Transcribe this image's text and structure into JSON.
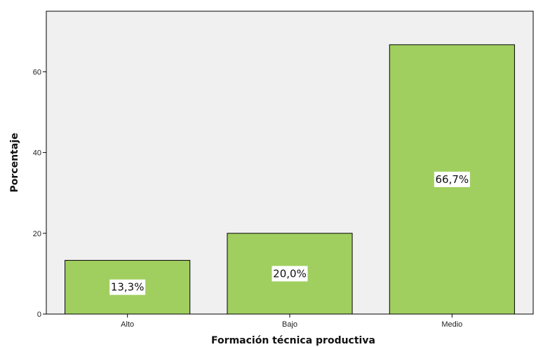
{
  "chart_data": {
    "type": "bar",
    "title": "",
    "xlabel": "Formación técnica productiva",
    "ylabel": "Porcentaje",
    "categories": [
      "Alto",
      "Bajo",
      "Medio"
    ],
    "values": [
      13.3,
      20.0,
      66.7
    ],
    "data_labels": [
      "13,3%",
      "20,0%",
      "66,7%"
    ],
    "ylim": [
      0,
      75
    ],
    "yticks": [
      0,
      20,
      40,
      60
    ],
    "ytick_labels": [
      "0",
      "20",
      "40",
      "60"
    ],
    "grid": false,
    "legend": "none",
    "bar_color": "#a0cf5f",
    "plot_background": "#f0f0f0"
  }
}
